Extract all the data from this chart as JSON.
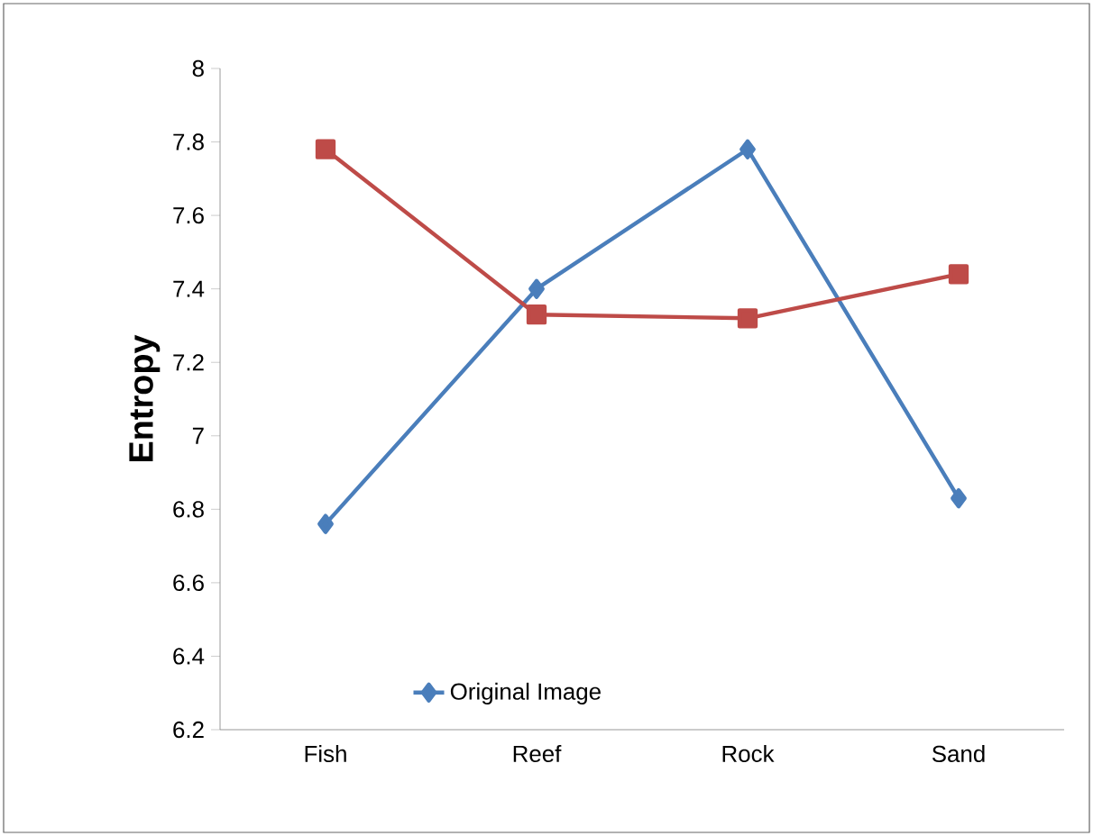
{
  "chart_data": {
    "type": "line",
    "ylabel": "Entropy",
    "categories": [
      "Fish",
      "Reef",
      "Rock",
      "Sand"
    ],
    "series": [
      {
        "name": "Original Image",
        "color": "#4a7ebb",
        "marker": "diamond",
        "values": [
          6.76,
          7.4,
          7.78,
          6.83
        ]
      },
      {
        "color": "#be4b48",
        "marker": "square",
        "values": [
          7.78,
          7.33,
          7.32,
          7.44
        ]
      }
    ],
    "ylim": [
      6.2,
      8
    ],
    "yticks": [
      6.2,
      6.4,
      6.6,
      6.8,
      7,
      7.2,
      7.4,
      7.6,
      7.8,
      8
    ],
    "grid": false,
    "legend": "bottom left",
    "line_style": "solid"
  }
}
